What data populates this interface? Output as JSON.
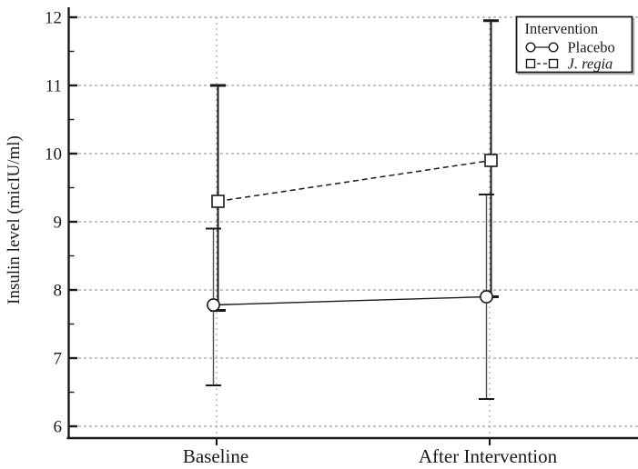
{
  "chart_data": {
    "type": "line",
    "title": "",
    "categories": [
      "Baseline",
      "After Intervention"
    ],
    "series": [
      {
        "name": "Placebo",
        "marker": "circle",
        "line": "solid",
        "label_style": "normal",
        "values": [
          {
            "category": "Baseline",
            "mean": 7.78,
            "lo": 6.6,
            "hi": 8.9
          },
          {
            "category": "After Intervention",
            "mean": 7.9,
            "lo": 6.4,
            "hi": 9.4
          }
        ]
      },
      {
        "name": "J. regia",
        "marker": "square",
        "line": "dashed",
        "label_style": "italic",
        "values": [
          {
            "category": "Baseline",
            "mean": 9.3,
            "lo": 7.7,
            "hi": 11.0
          },
          {
            "category": "After Intervention",
            "mean": 9.9,
            "lo": 7.9,
            "hi": 11.95
          }
        ]
      }
    ],
    "xlabel": "",
    "ylabel": "Insulin level (micIU/ml)",
    "ylim": [
      6,
      12
    ],
    "yticks": [
      6,
      7,
      8,
      9,
      10,
      11,
      12
    ],
    "ytick_step": 1,
    "yminor_step": 0.5,
    "grid": "dashed horizontal gridlines at integer ticks; dashed vertical gridlines at categories",
    "legend": {
      "title": "Intervention",
      "position": "top-right",
      "entries": [
        "Placebo",
        "J. regia"
      ]
    },
    "colors": {
      "ink": "#1a1a1a",
      "grid": "#8a8a8a",
      "vgrid": "#9a9a9a",
      "placebo_bar": "#4f4f4f",
      "background": "#ffffff",
      "legend_shadow": "#b0b0b0"
    }
  }
}
